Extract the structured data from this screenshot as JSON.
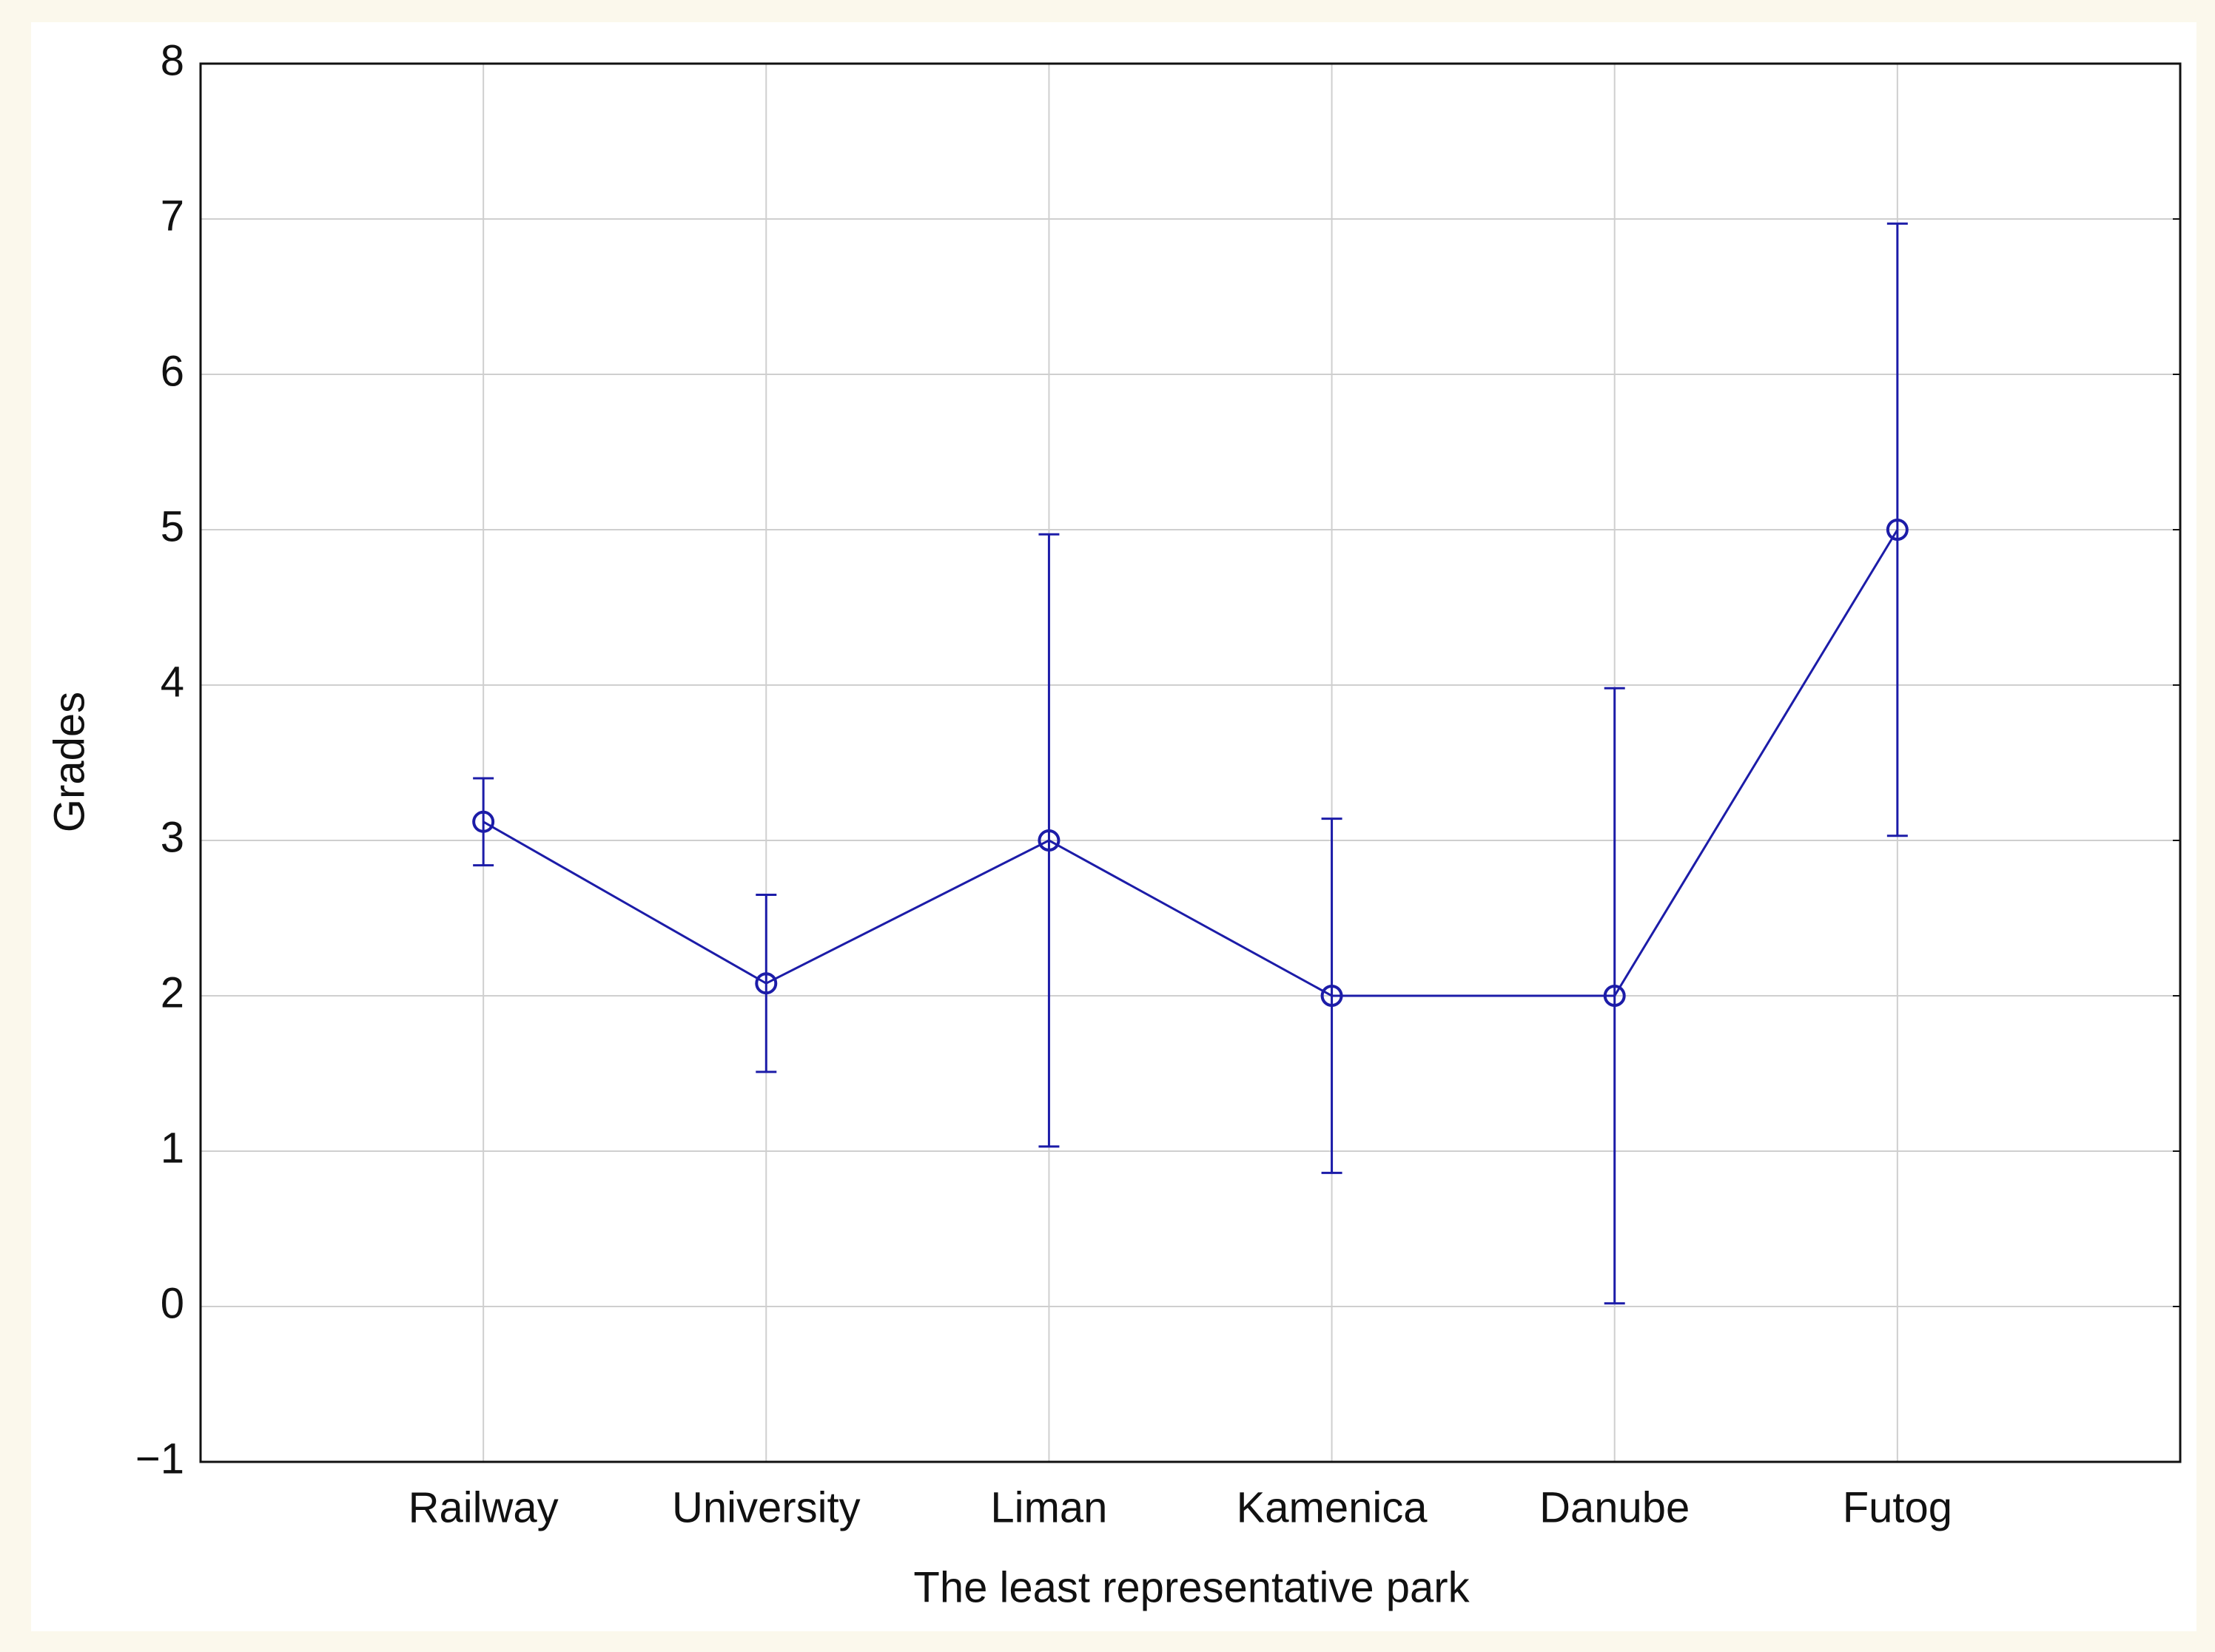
{
  "chart_data": {
    "type": "line",
    "xlabel": "The least representative park",
    "ylabel": "Grades",
    "categories": [
      "Railway",
      "University",
      "Liman",
      "Kamenica",
      "Danube",
      "Futog"
    ],
    "series": [
      {
        "color": "#1c1ca8",
        "values": [
          3.12,
          2.08,
          3.0,
          2.0,
          2.0,
          5.0
        ],
        "errors": [
          0.28,
          0.57,
          1.97,
          1.14,
          1.98,
          1.97
        ]
      }
    ],
    "ylim": [
      -1,
      8
    ],
    "yticks": [
      {
        "value": -1,
        "label": "−1"
      },
      0,
      1,
      2,
      3,
      4,
      5,
      6,
      7,
      8
    ],
    "grid": true
  }
}
